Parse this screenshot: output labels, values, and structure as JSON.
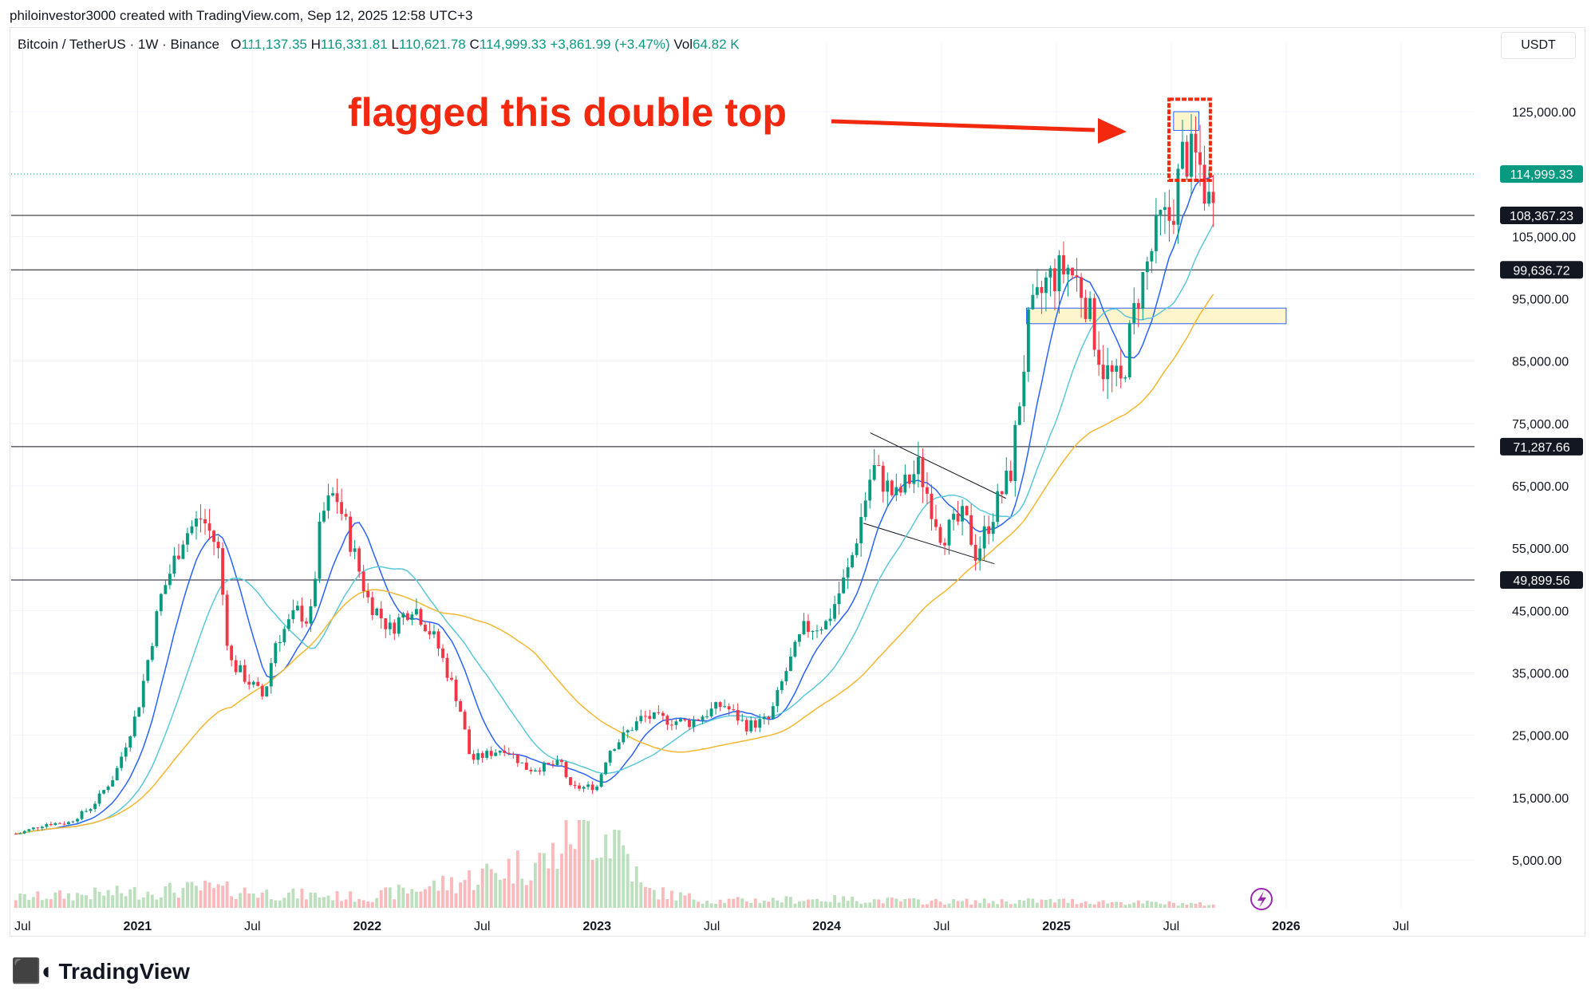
{
  "header": {
    "credit": "philoinvestor3000 created with TradingView.com, Sep 12, 2025 12:58 UTC+3"
  },
  "symbol": {
    "name": "Bitcoin / TetherUS · 1W · Binance",
    "o_label": "O",
    "o_value": "111,137.35",
    "h_label": "H",
    "h_value": "116,331.81",
    "l_label": "L",
    "l_value": "110,621.78",
    "c_label": "C",
    "c_value": "114,999.33",
    "change": "+3,861.99 (+3.47%)",
    "vol_label": "Vol",
    "vol_value": "64.82 K"
  },
  "currency": "USDT",
  "annotation": {
    "text": "flagged this double top"
  },
  "footer": {
    "brand": "TradingView"
  },
  "colors": {
    "up": "#089981",
    "down": "#f23645",
    "ma_fast": "#2962ff",
    "ma_mid": "#5bc8d9",
    "ma_slow": "#f5b731",
    "annotation": "#f2280f",
    "zone_fill": "#fff5cc",
    "zone_border": "#2962ff"
  },
  "chart_data": {
    "type": "candlestick",
    "timeframe": "1W",
    "ylim": [
      0,
      130000
    ],
    "y_ticks": [
      5000,
      15000,
      25000,
      35000,
      45000,
      55000,
      65000,
      75000,
      85000,
      95000,
      105000,
      125000
    ],
    "y_tick_labels": [
      "5,000.00",
      "15,000.00",
      "25,000.00",
      "35,000.00",
      "45,000.00",
      "55,000.00",
      "65,000.00",
      "75,000.00",
      "85,000.00",
      "95,000.00",
      "105,000.00",
      "125,000.00"
    ],
    "x_ticks": [
      {
        "label": "Jul",
        "t": 2020.5
      },
      {
        "label": "2021",
        "t": 2021.0
      },
      {
        "label": "Jul",
        "t": 2021.5
      },
      {
        "label": "2022",
        "t": 2022.0
      },
      {
        "label": "Jul",
        "t": 2022.5
      },
      {
        "label": "2023",
        "t": 2023.0
      },
      {
        "label": "Jul",
        "t": 2023.5
      },
      {
        "label": "2024",
        "t": 2024.0
      },
      {
        "label": "Jul",
        "t": 2024.5
      },
      {
        "label": "2025",
        "t": 2025.0
      },
      {
        "label": "Jul",
        "t": 2025.5
      },
      {
        "label": "2026",
        "t": 2026.0
      },
      {
        "label": "Jul",
        "t": 2026.5
      }
    ],
    "horizontal_levels": [
      {
        "value": 108367.23,
        "label": "108,367.23"
      },
      {
        "value": 99636.72,
        "label": "99,636.72"
      },
      {
        "value": 71287.66,
        "label": "71,287.66"
      },
      {
        "value": 49899.56,
        "label": "49,899.56"
      }
    ],
    "last_price": {
      "value": 114999.33,
      "label": "114,999.33"
    },
    "zones": [
      {
        "t0": 2024.87,
        "t1": 2026.0,
        "y0": 91000,
        "y1": 93500
      },
      {
        "t0": 2025.51,
        "t1": 2025.62,
        "y0": 122000,
        "y1": 125000
      }
    ],
    "double_top_box": {
      "t0": 2025.49,
      "t1": 2025.67,
      "y0": 114000,
      "y1": 127000
    },
    "channel_lines": [
      {
        "t0": 2024.19,
        "v0": 73500,
        "t1": 2024.78,
        "v1": 63000
      },
      {
        "t0": 2024.16,
        "v0": 59000,
        "t1": 2024.73,
        "v1": 52500
      }
    ],
    "price_anchors": [
      [
        2020.48,
        9200
      ],
      [
        2020.6,
        10800
      ],
      [
        2020.7,
        11000
      ],
      [
        2020.8,
        13500
      ],
      [
        2020.9,
        18500
      ],
      [
        2021.0,
        29000
      ],
      [
        2021.1,
        47000
      ],
      [
        2021.2,
        57000
      ],
      [
        2021.28,
        60000
      ],
      [
        2021.35,
        55000
      ],
      [
        2021.4,
        37000
      ],
      [
        2021.5,
        33000
      ],
      [
        2021.55,
        31000
      ],
      [
        2021.6,
        40000
      ],
      [
        2021.7,
        45000
      ],
      [
        2021.75,
        43000
      ],
      [
        2021.8,
        60000
      ],
      [
        2021.86,
        64000
      ],
      [
        2021.92,
        57000
      ],
      [
        2022.0,
        47000
      ],
      [
        2022.1,
        42000
      ],
      [
        2022.2,
        46000
      ],
      [
        2022.3,
        40000
      ],
      [
        2022.4,
        30000
      ],
      [
        2022.45,
        21000
      ],
      [
        2022.6,
        23000
      ],
      [
        2022.7,
        19500
      ],
      [
        2022.85,
        20500
      ],
      [
        2022.88,
        16500
      ],
      [
        2023.0,
        16800
      ],
      [
        2023.05,
        22500
      ],
      [
        2023.2,
        28000
      ],
      [
        2023.4,
        27000
      ],
      [
        2023.55,
        30000
      ],
      [
        2023.65,
        26500
      ],
      [
        2023.75,
        27500
      ],
      [
        2023.82,
        35000
      ],
      [
        2023.9,
        42000
      ],
      [
        2024.0,
        43000
      ],
      [
        2024.1,
        52000
      ],
      [
        2024.2,
        68000
      ],
      [
        2024.3,
        63000
      ],
      [
        2024.4,
        68000
      ],
      [
        2024.5,
        57000
      ],
      [
        2024.6,
        60000
      ],
      [
        2024.65,
        54000
      ],
      [
        2024.75,
        63000
      ],
      [
        2024.8,
        67000
      ],
      [
        2024.88,
        91000
      ],
      [
        2024.96,
        98000
      ],
      [
        2025.05,
        100000
      ],
      [
        2025.12,
        96000
      ],
      [
        2025.2,
        84000
      ],
      [
        2025.28,
        81000
      ],
      [
        2025.35,
        95000
      ],
      [
        2025.45,
        107000
      ],
      [
        2025.5,
        108000
      ],
      [
        2025.55,
        118000
      ],
      [
        2025.62,
        117000
      ],
      [
        2025.66,
        110000
      ],
      [
        2025.69,
        115000
      ]
    ],
    "volume_scale_max": 1,
    "volume_profile": [
      [
        2020.5,
        0.12
      ],
      [
        2021.0,
        0.18
      ],
      [
        2021.3,
        0.22
      ],
      [
        2021.6,
        0.16
      ],
      [
        2022.0,
        0.12
      ],
      [
        2022.4,
        0.3
      ],
      [
        2022.6,
        0.45
      ],
      [
        2022.8,
        0.55
      ],
      [
        2022.9,
        0.95
      ],
      [
        2023.1,
        0.8
      ],
      [
        2023.2,
        0.2
      ],
      [
        2023.5,
        0.08
      ],
      [
        2024.0,
        0.1
      ],
      [
        2024.5,
        0.07
      ],
      [
        2025.0,
        0.08
      ],
      [
        2025.69,
        0.04
      ]
    ]
  }
}
